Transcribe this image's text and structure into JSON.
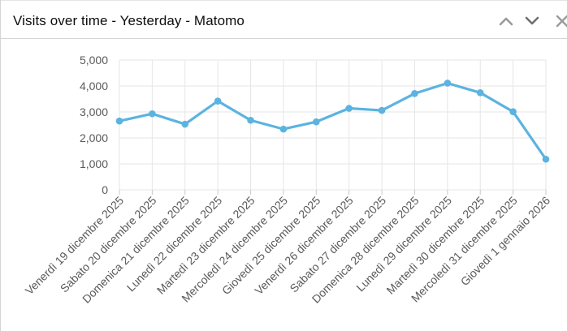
{
  "widget": {
    "title": "Visits over time - Yesterday - Matomo",
    "icons": {
      "collapse": "chevron-up-icon",
      "expand": "chevron-down-icon",
      "more": "close-icon"
    }
  },
  "colors": {
    "series": "#5cb3e0",
    "grid": "#e6e6e6",
    "axis_text": "#5a5a5a",
    "header_icon": "#9a9a9a"
  },
  "chart_data": {
    "type": "line",
    "title": "",
    "xlabel": "",
    "ylabel": "",
    "ylim": [
      0,
      5000
    ],
    "yticks": [
      0,
      1000,
      2000,
      3000,
      4000,
      5000
    ],
    "ytick_labels": [
      "0",
      "1,000",
      "2,000",
      "3,000",
      "4,000",
      "5,000"
    ],
    "grid": true,
    "categories": [
      "Venerdì 19 dicembre 2025",
      "Sabato 20 dicembre 2025",
      "Domenica 21 dicembre 2025",
      "Lunedì 22 dicembre 2025",
      "Martedì 23 dicembre 2025",
      "Mercoledì 24 dicembre 2025",
      "Giovedì 25 dicembre 2025",
      "Venerdì 26 dicembre 2025",
      "Sabato 27 dicembre 2025",
      "Domenica 28 dicembre 2025",
      "Lunedì 29 dicembre 2025",
      "Martedì 30 dicembre 2025",
      "Mercoledì 31 dicembre 2025",
      "Giovedì 1 gennaio 2026"
    ],
    "series": [
      {
        "name": "Visits",
        "values": [
          2650,
          2930,
          2530,
          3420,
          2680,
          2340,
          2620,
          3140,
          3060,
          3710,
          4110,
          3740,
          3010,
          1180
        ]
      }
    ]
  }
}
